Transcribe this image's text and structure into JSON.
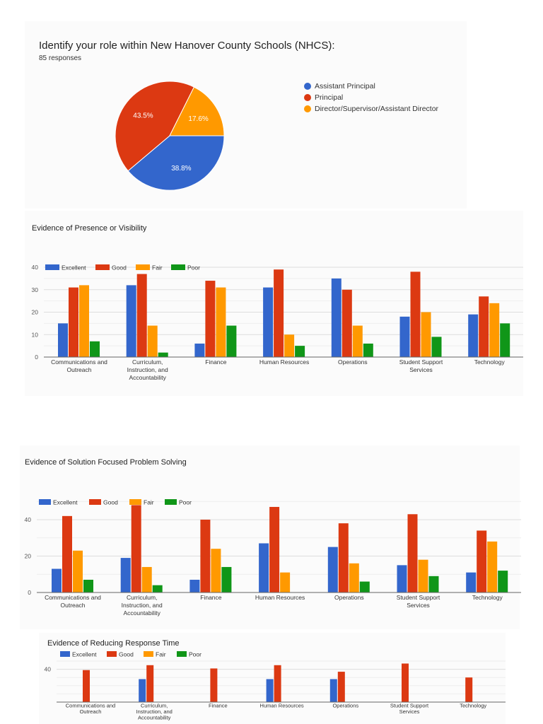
{
  "chart_data": [
    {
      "type": "pie",
      "title": "Identify your role within New Hanover County Schools (NHCS):",
      "subtitle": "85 responses",
      "slices": [
        {
          "label": "Assistant Principal",
          "value": 38.8,
          "display": "38.8%",
          "color": "#3366cc"
        },
        {
          "label": "Principal",
          "value": 43.5,
          "display": "43.5%",
          "color": "#dc3912"
        },
        {
          "label": "Director/Supervisor/Assistant Director",
          "value": 17.6,
          "display": "17.6%",
          "color": "#ff9900"
        }
      ],
      "legend_position": "right"
    },
    {
      "type": "bar",
      "title": "Evidence of Presence or Visibility",
      "categories": [
        "Communications and Outreach",
        "Curriculum, Instruction, and Accountability",
        "Finance",
        "Human Resources",
        "Operations",
        "Student Support Services",
        "Technology"
      ],
      "series": [
        {
          "name": "Excellent",
          "color": "#3366cc",
          "values": [
            15,
            32,
            6,
            31,
            35,
            18,
            19
          ]
        },
        {
          "name": "Good",
          "color": "#dc3912",
          "values": [
            31,
            37,
            34,
            39,
            30,
            38,
            27
          ]
        },
        {
          "name": "Fair",
          "color": "#ff9900",
          "values": [
            32,
            14,
            31,
            10,
            14,
            20,
            24
          ]
        },
        {
          "name": "Poor",
          "color": "#109618",
          "values": [
            7,
            2,
            14,
            5,
            6,
            9,
            15
          ]
        }
      ],
      "yticks": [
        0,
        10,
        20,
        30,
        40
      ],
      "ylim": [
        0,
        40
      ],
      "grid": true,
      "legend_position": "top-left"
    },
    {
      "type": "bar",
      "title": "Evidence of Solution Focused Problem Solving",
      "categories": [
        "Communications and Outreach",
        "Curriculum, Instruction, and Accountability",
        "Finance",
        "Human Resources",
        "Operations",
        "Student Support Services",
        "Technology"
      ],
      "series": [
        {
          "name": "Excellent",
          "color": "#3366cc",
          "values": [
            13,
            19,
            7,
            27,
            25,
            15,
            11
          ]
        },
        {
          "name": "Good",
          "color": "#dc3912",
          "values": [
            42,
            48,
            40,
            47,
            38,
            43,
            34
          ]
        },
        {
          "name": "Fair",
          "color": "#ff9900",
          "values": [
            23,
            14,
            24,
            11,
            16,
            18,
            28
          ]
        },
        {
          "name": "Poor",
          "color": "#109618",
          "values": [
            7,
            4,
            14,
            0,
            6,
            9,
            12
          ]
        }
      ],
      "yticks": [
        0,
        20,
        40
      ],
      "ylim": [
        0,
        50
      ],
      "grid": true,
      "legend_position": "top-left"
    },
    {
      "type": "bar",
      "title": "Evidence of Reducing Response Time",
      "categories": [
        "Communications and Outreach",
        "Curriculum, Instruction, and Accountability",
        "Finance",
        "Human Resources",
        "Operations",
        "Student Support Services",
        "Technology"
      ],
      "series": [
        {
          "name": "Excellent",
          "color": "#3366cc",
          "values": [
            null,
            28,
            null,
            28,
            28,
            null,
            null
          ]
        },
        {
          "name": "Good",
          "color": "#dc3912",
          "values": [
            39,
            45,
            41,
            45,
            37,
            47,
            30
          ]
        },
        {
          "name": "Fair",
          "color": "#ff9900",
          "values": [
            null,
            null,
            null,
            null,
            null,
            null,
            null
          ]
        },
        {
          "name": "Poor",
          "color": "#109618",
          "values": [
            null,
            null,
            null,
            null,
            null,
            null,
            null
          ]
        }
      ],
      "yticks": [
        40
      ],
      "ylim": [
        0,
        50
      ],
      "grid": true,
      "legend_position": "top-left"
    }
  ]
}
